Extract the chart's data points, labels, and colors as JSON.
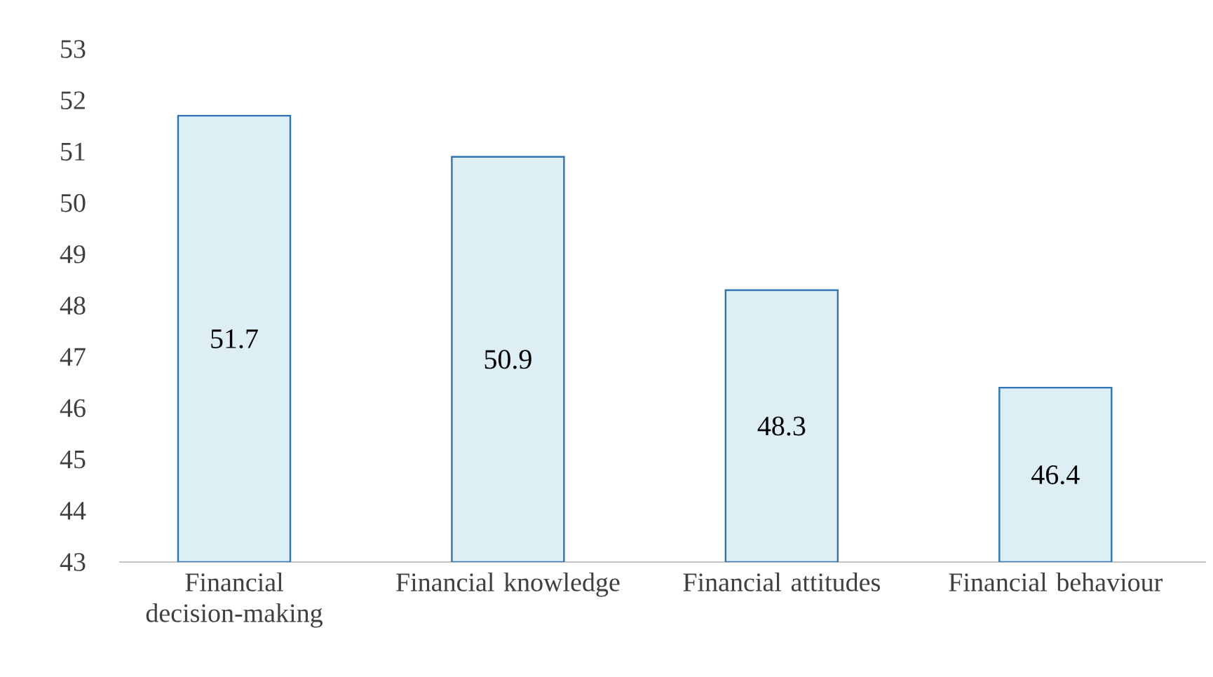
{
  "chart_data": {
    "type": "bar",
    "categories": [
      "Financial decision-making",
      "Financial knowledge",
      "Financial attitudes",
      "Financial behaviour"
    ],
    "values": [
      51.7,
      50.9,
      48.3,
      46.4
    ],
    "color": "#deeef5",
    "ylim": [
      43,
      53
    ],
    "yticks": [
      43,
      44,
      45,
      46,
      47,
      48,
      49,
      50,
      51,
      52,
      53
    ],
    "data_labels": true
  }
}
